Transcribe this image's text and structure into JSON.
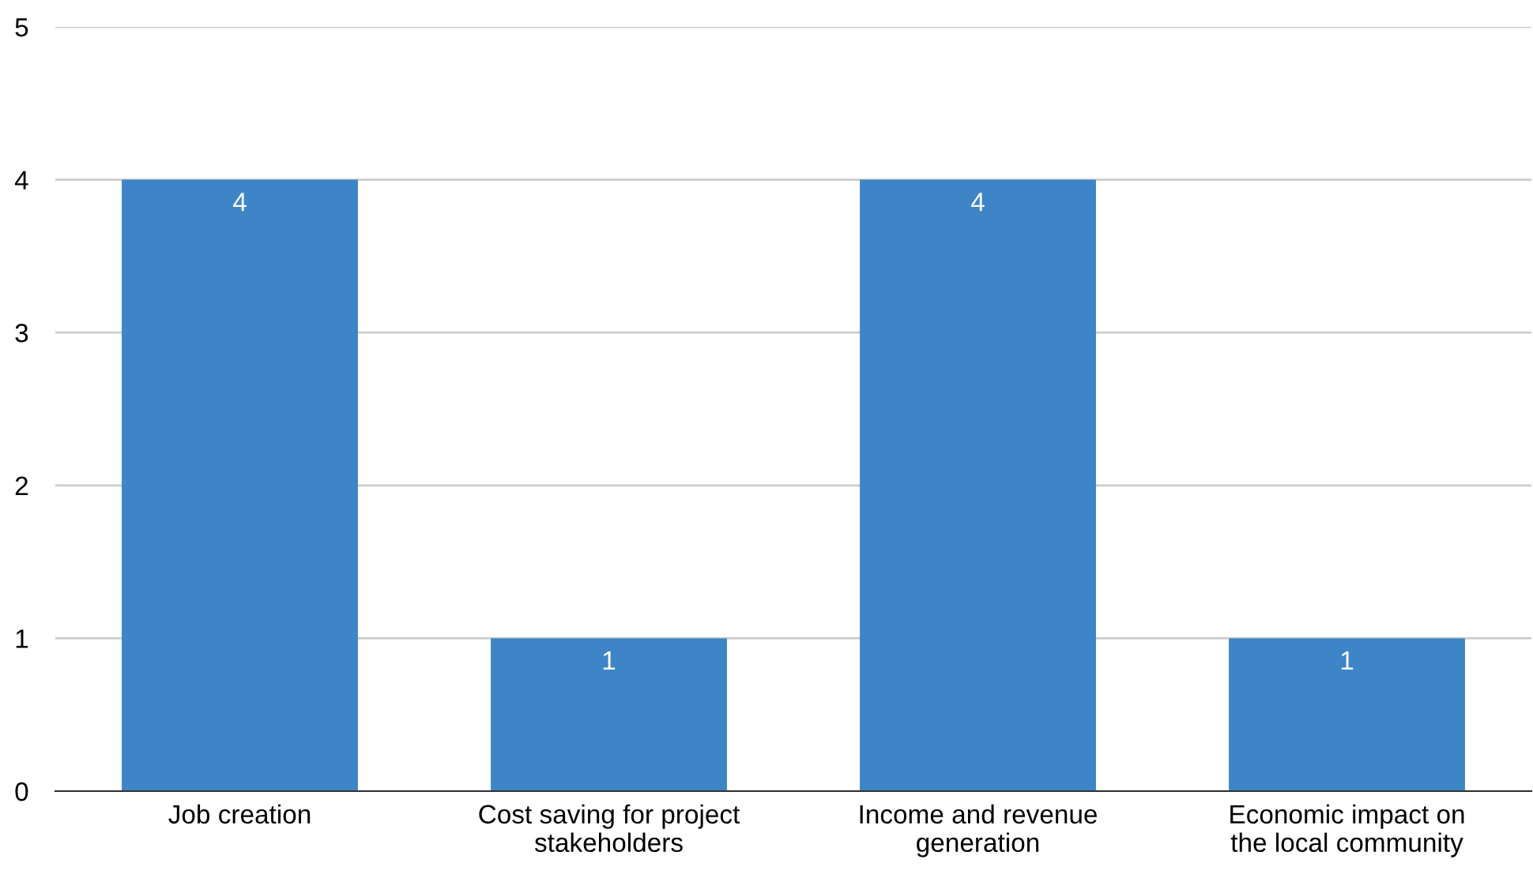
{
  "chart_data": {
    "type": "bar",
    "categories": [
      "Job creation",
      "Cost saving for project\nstakeholders",
      "Income and revenue\ngeneration",
      "Economic impact on\nthe local community"
    ],
    "values": [
      4,
      1,
      4,
      1
    ],
    "color": "#3d85c6",
    "ylim": [
      0,
      5
    ],
    "yticks": [
      0,
      1,
      2,
      3,
      4,
      5
    ],
    "grid": "y",
    "data_labels": true
  }
}
